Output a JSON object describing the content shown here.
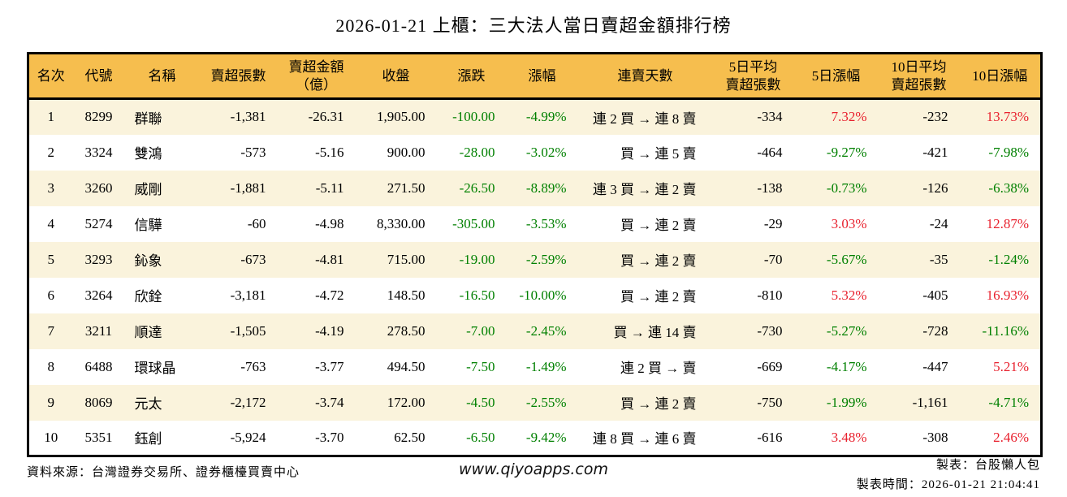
{
  "title": "2026-01-21 上櫃：三大法人當日賣超金額排行榜",
  "colors": {
    "header_bg": "#F6BE4E",
    "row_odd_bg": "#FAF3DC",
    "row_even_bg": "#FFFFFF",
    "up_red": "#E8212E",
    "down_green": "#008000",
    "border_black": "#000000"
  },
  "table": {
    "headers": [
      "名次",
      "代號",
      "名稱",
      "賣超張數",
      "賣超金額\n（億）",
      "收盤",
      "漲跌",
      "漲幅",
      "連賣天數",
      "5日平均\n賣超張數",
      "5日漲幅",
      "10日平均\n賣超張數",
      "10日漲幅"
    ],
    "rows": [
      {
        "rank": "1",
        "code": "8299",
        "name": "群聯",
        "sell_vol": "-1,381",
        "sell_amt": "-26.31",
        "close": "1,905.00",
        "change": "-100.00",
        "change_pct": "-4.99%",
        "streak": "連 2 買 → 連 8 賣",
        "avg5": "-334",
        "pct5": "7.32%",
        "avg10": "-232",
        "pct10": "13.73%"
      },
      {
        "rank": "2",
        "code": "3324",
        "name": "雙鴻",
        "sell_vol": "-573",
        "sell_amt": "-5.16",
        "close": "900.00",
        "change": "-28.00",
        "change_pct": "-3.02%",
        "streak": "買 → 連 5 賣",
        "avg5": "-464",
        "pct5": "-9.27%",
        "avg10": "-421",
        "pct10": "-7.98%"
      },
      {
        "rank": "3",
        "code": "3260",
        "name": "威剛",
        "sell_vol": "-1,881",
        "sell_amt": "-5.11",
        "close": "271.50",
        "change": "-26.50",
        "change_pct": "-8.89%",
        "streak": "連 3 買 → 連 2 賣",
        "avg5": "-138",
        "pct5": "-0.73%",
        "avg10": "-126",
        "pct10": "-6.38%"
      },
      {
        "rank": "4",
        "code": "5274",
        "name": "信驊",
        "sell_vol": "-60",
        "sell_amt": "-4.98",
        "close": "8,330.00",
        "change": "-305.00",
        "change_pct": "-3.53%",
        "streak": "買 → 連 2 賣",
        "avg5": "-29",
        "pct5": "3.03%",
        "avg10": "-24",
        "pct10": "12.87%"
      },
      {
        "rank": "5",
        "code": "3293",
        "name": "鈊象",
        "sell_vol": "-673",
        "sell_amt": "-4.81",
        "close": "715.00",
        "change": "-19.00",
        "change_pct": "-2.59%",
        "streak": "買 → 連 2 賣",
        "avg5": "-70",
        "pct5": "-5.67%",
        "avg10": "-35",
        "pct10": "-1.24%"
      },
      {
        "rank": "6",
        "code": "3264",
        "name": "欣銓",
        "sell_vol": "-3,181",
        "sell_amt": "-4.72",
        "close": "148.50",
        "change": "-16.50",
        "change_pct": "-10.00%",
        "streak": "買 → 連 2 賣",
        "avg5": "-810",
        "pct5": "5.32%",
        "avg10": "-405",
        "pct10": "16.93%"
      },
      {
        "rank": "7",
        "code": "3211",
        "name": "順達",
        "sell_vol": "-1,505",
        "sell_amt": "-4.19",
        "close": "278.50",
        "change": "-7.00",
        "change_pct": "-2.45%",
        "streak": "買 → 連 14 賣",
        "avg5": "-730",
        "pct5": "-5.27%",
        "avg10": "-728",
        "pct10": "-11.16%"
      },
      {
        "rank": "8",
        "code": "6488",
        "name": "環球晶",
        "sell_vol": "-763",
        "sell_amt": "-3.77",
        "close": "494.50",
        "change": "-7.50",
        "change_pct": "-1.49%",
        "streak": "連 2 買 → 賣",
        "avg5": "-669",
        "pct5": "-4.17%",
        "avg10": "-447",
        "pct10": "5.21%"
      },
      {
        "rank": "9",
        "code": "8069",
        "name": "元太",
        "sell_vol": "-2,172",
        "sell_amt": "-3.74",
        "close": "172.00",
        "change": "-4.50",
        "change_pct": "-2.55%",
        "streak": "買 → 連 2 賣",
        "avg5": "-750",
        "pct5": "-1.99%",
        "avg10": "-1,161",
        "pct10": "-4.71%"
      },
      {
        "rank": "10",
        "code": "5351",
        "name": "鈺創",
        "sell_vol": "-5,924",
        "sell_amt": "-3.70",
        "close": "62.50",
        "change": "-6.50",
        "change_pct": "-9.42%",
        "streak": "連 8 買 → 連 6 賣",
        "avg5": "-616",
        "pct5": "3.48%",
        "avg10": "-308",
        "pct10": "2.46%"
      }
    ]
  },
  "footer": {
    "source": "資料來源：台灣證券交易所、證券櫃檯買賣中心",
    "website": "www.qiyoapps.com",
    "author": "製表：台股懶人包",
    "timestamp": "製表時間：2026-01-21 21:04:41"
  }
}
